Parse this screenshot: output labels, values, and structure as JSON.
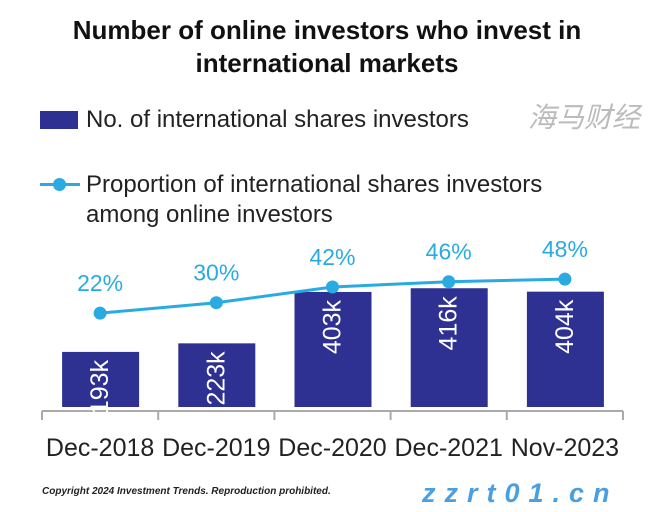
{
  "chart_data": {
    "type": "bar+line",
    "title": "Number of online investors who invest in international markets",
    "categories": [
      "Dec-2018",
      "Dec-2019",
      "Dec-2020",
      "Dec-2021",
      "Nov-2023"
    ],
    "series": [
      {
        "name": "No. of international shares investors",
        "type": "bar",
        "values": [
          193,
          223,
          403,
          416,
          404
        ],
        "labels": [
          "193k",
          "223k",
          "403k",
          "416k",
          "404k"
        ],
        "color": "#2e3192"
      },
      {
        "name": "Proportion of international shares investors among online investors",
        "type": "line",
        "values": [
          22,
          30,
          42,
          46,
          48
        ],
        "labels": [
          "22%",
          "30%",
          "42%",
          "46%",
          "48%"
        ],
        "color": "#29abe2"
      }
    ],
    "legend_position": "top",
    "grid": false
  },
  "legend_line2": "among online investors",
  "legend_line1": "Proportion of international shares investors",
  "copyright": "Copyright 2024 Investment Trends. Reproduction prohibited.",
  "watermark": {
    "cn": "海马财经",
    "url": "zzrt01.cn"
  }
}
